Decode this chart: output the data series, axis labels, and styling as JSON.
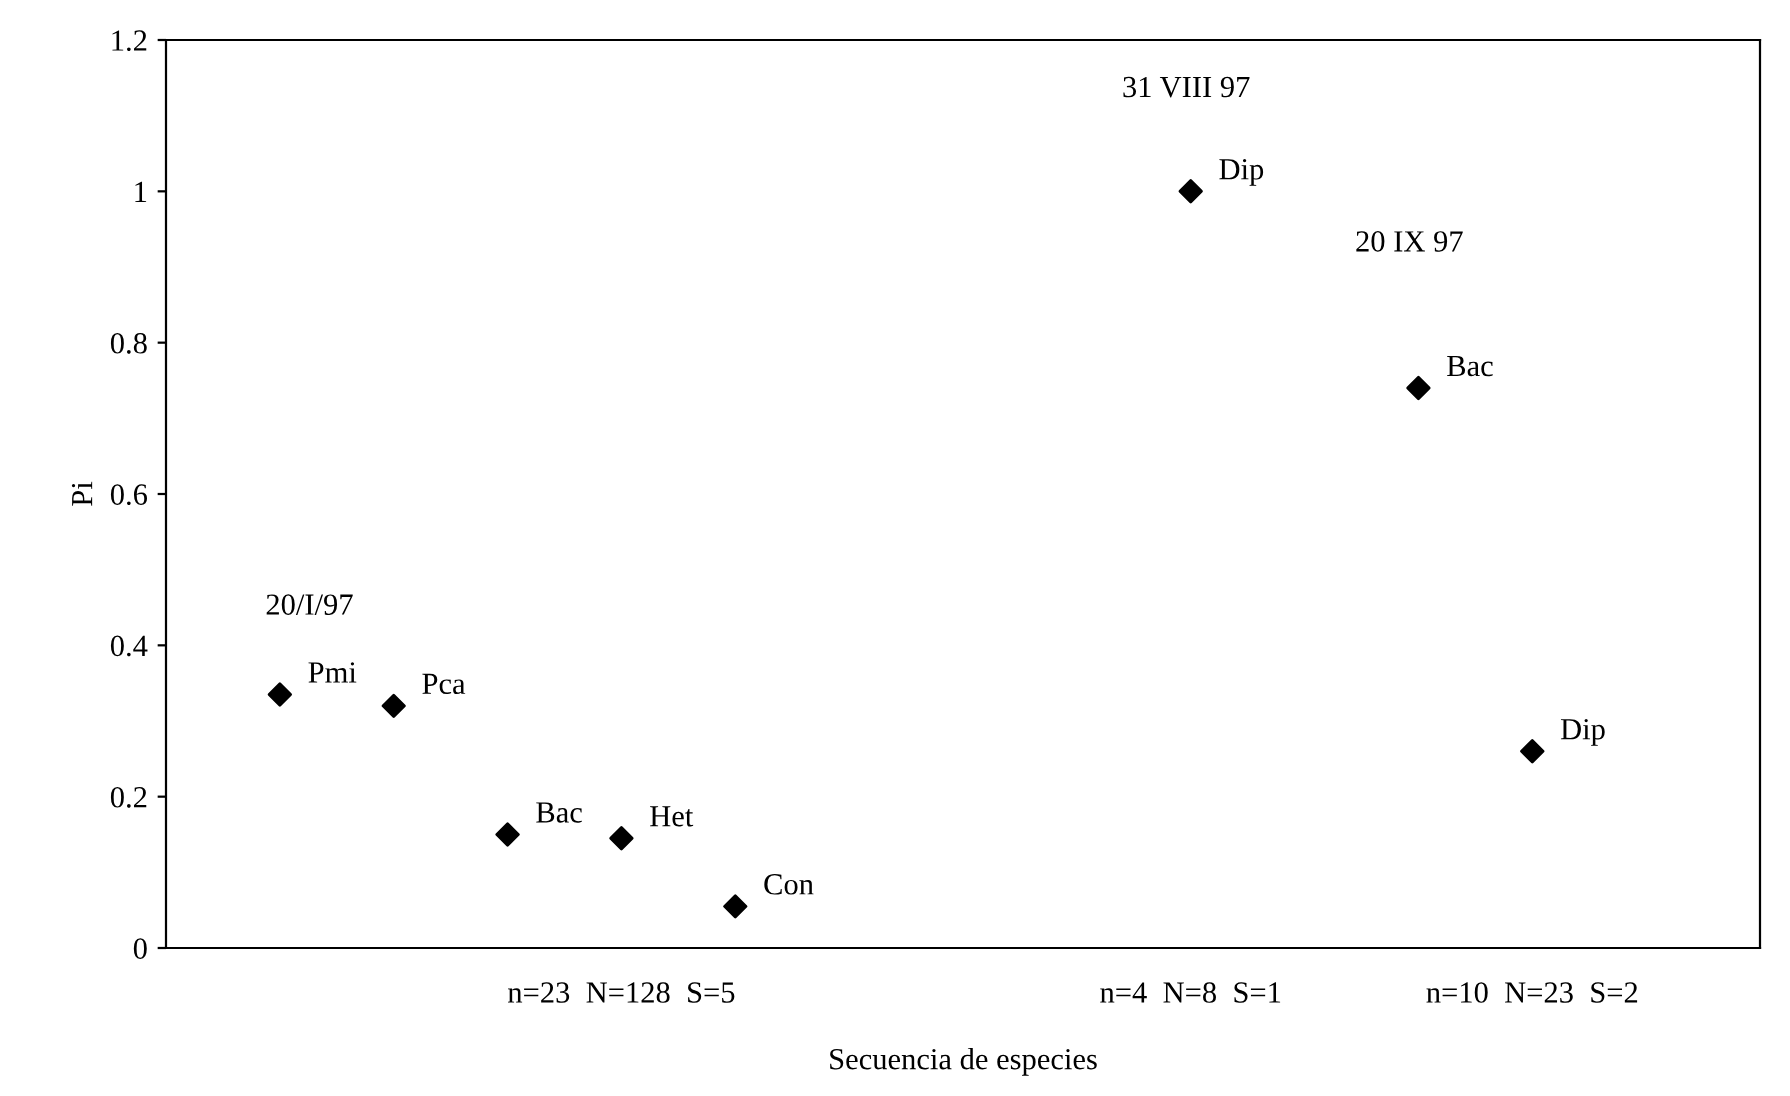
{
  "chart_data": {
    "type": "scatter",
    "xlabel": "Secuencia de especies",
    "ylabel": "Pi",
    "categories": [
      null,
      null,
      null,
      "n=23  N=128  S=5",
      null,
      null,
      null,
      null,
      "n=4  N=8  S=1",
      null,
      null,
      "n=10  N=23  S=2",
      null
    ],
    "values": [
      0.335,
      0.32,
      0.15,
      0.145,
      0.055,
      null,
      null,
      null,
      1.0,
      null,
      0.74,
      0.26,
      null
    ],
    "value_labels": [
      "Pmi",
      "Pca",
      "Bac",
      "Het",
      "Con",
      null,
      null,
      null,
      "Dip",
      null,
      "Bac",
      "Dip",
      null
    ],
    "color": "#000000",
    "marker": "diamond",
    "grid": false,
    "legend": false,
    "ylim": [
      0,
      1.2
    ],
    "yticks": [
      0,
      0.2,
      0.4,
      0.6,
      0.8,
      1,
      1.2
    ],
    "annotations": [
      "20/I/97",
      "31 VIII 97",
      "20 IX 97"
    ]
  }
}
